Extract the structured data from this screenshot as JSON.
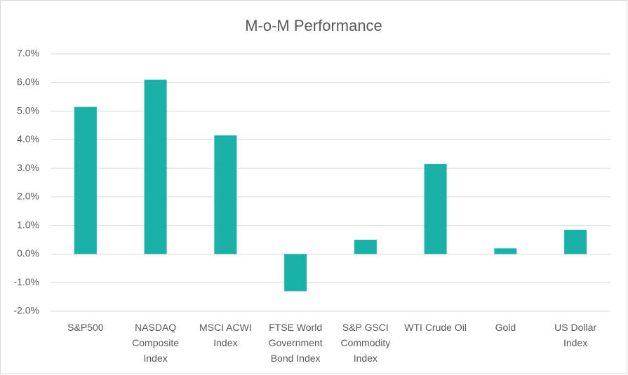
{
  "chart_data": {
    "type": "bar",
    "title": "M-o-M Performance",
    "categories": [
      "S&P500",
      "NASDAQ Composite Index",
      "MSCI ACWI Index",
      "FTSE World Government Bond Index",
      "S&P GSCI Commodity Index",
      "WTI Crude Oil",
      "Gold",
      "US Dollar Index"
    ],
    "values": [
      5.15,
      6.1,
      4.15,
      -1.3,
      0.5,
      3.15,
      0.2,
      0.85
    ],
    "color": "#1ab2a8",
    "ylim": [
      -2,
      7
    ],
    "yticks": [
      {
        "value": -2,
        "label": "-2.0%"
      },
      {
        "value": -1,
        "label": "-1.0%"
      },
      {
        "value": 0,
        "label": "0.0%"
      },
      {
        "value": 1,
        "label": "1.0%"
      },
      {
        "value": 2,
        "label": "2.0%"
      },
      {
        "value": 3,
        "label": "3.0%"
      },
      {
        "value": 4,
        "label": "4.0%"
      },
      {
        "value": 5,
        "label": "5.0%"
      },
      {
        "value": 6,
        "label": "6.0%"
      },
      {
        "value": 7,
        "label": "7.0%"
      }
    ],
    "grid": true
  }
}
